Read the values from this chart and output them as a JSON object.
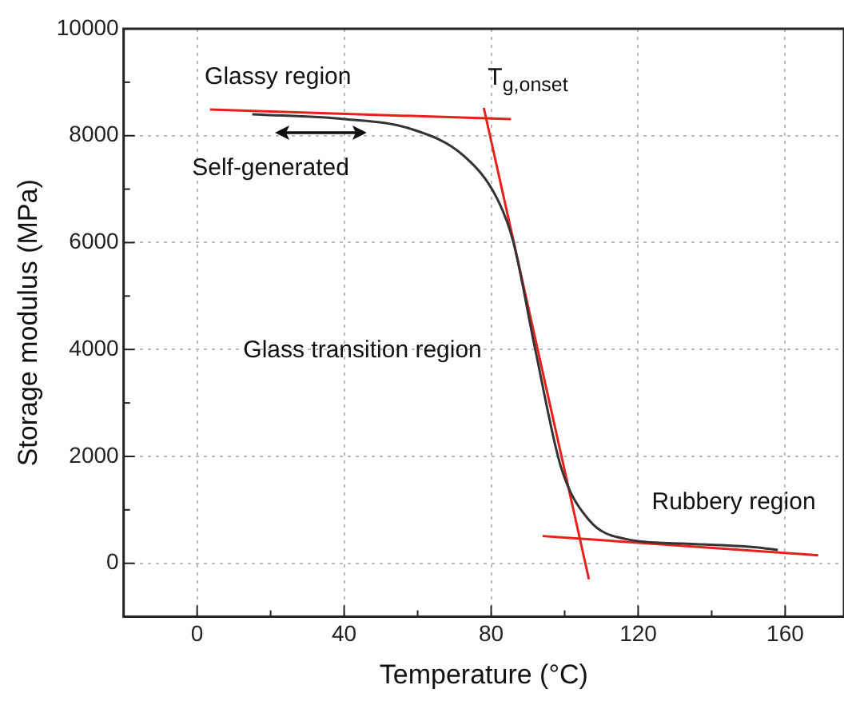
{
  "chart_data": {
    "type": "line",
    "xlabel": "Temperature (°C)",
    "ylabel": "Storage modulus (MPa)",
    "xlim": [
      -20,
      176
    ],
    "xticks": [
      0,
      40,
      80,
      120,
      160
    ],
    "ylim": [
      -1000,
      10000
    ],
    "yticks": [
      0,
      2000,
      4000,
      6000,
      8000,
      10000
    ],
    "grid": true,
    "legend": false,
    "marker": "none",
    "line_style": "solid",
    "annotations": [
      "Glassy region",
      "T$_{g,onset}$",
      "Self-generated",
      "Glass transition region",
      "Rubbery region"
    ],
    "series": [
      {
        "color": "#333333",
        "x": [
          15,
          40,
          58,
          72.6,
          81.5,
          86,
          92,
          99,
          106.6,
          117,
          132,
          152,
          158
        ],
        "values": [
          8400,
          8310,
          8130,
          7620,
          6840,
          6020,
          4000,
          1800,
          810,
          450,
          370,
          300,
          250
        ]
      },
      {
        "color": "#e8201c",
        "x": [
          3.5,
          85.4
        ],
        "values": [
          8490,
          8310
        ]
      },
      {
        "color": "#e8201c",
        "x": [
          78,
          106.6
        ],
        "values": [
          8520,
          -300
        ]
      },
      {
        "color": "#e8201c",
        "x": [
          94,
          169
        ],
        "values": [
          510,
          150
        ]
      }
    ]
  }
}
